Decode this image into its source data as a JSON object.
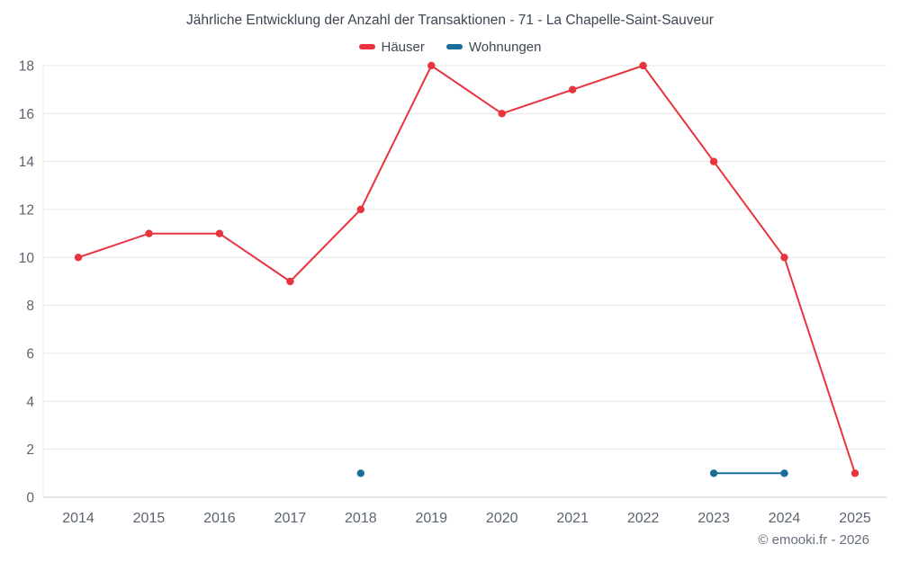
{
  "chart_data": {
    "type": "line",
    "title": "Jährliche Entwicklung der Anzahl der Transaktionen - 71 - La Chapelle-Saint-Sauveur",
    "categories": [
      "2014",
      "2015",
      "2016",
      "2017",
      "2018",
      "2019",
      "2020",
      "2021",
      "2022",
      "2023",
      "2024",
      "2025"
    ],
    "series": [
      {
        "name": "Häuser",
        "color": "#e8343e",
        "values": [
          10,
          11,
          11,
          9,
          12,
          18,
          16,
          17,
          18,
          14,
          10,
          1
        ]
      },
      {
        "name": "Wohnungen",
        "color": "#1a6d99",
        "values": [
          null,
          null,
          null,
          null,
          1,
          null,
          null,
          null,
          null,
          1,
          1,
          null
        ]
      }
    ],
    "xlabel": "",
    "ylabel": "",
    "ylim": [
      0,
      18
    ],
    "ytick_step": 2,
    "grid": true,
    "legend_position": "top"
  },
  "footer": {
    "copyright": "© emooki.fr - 2026"
  },
  "colors": {
    "gridline": "#e7e7e7",
    "axis_line": "#c8c8c8",
    "tick_label": "#5a6470",
    "title_text": "#3e4653"
  }
}
